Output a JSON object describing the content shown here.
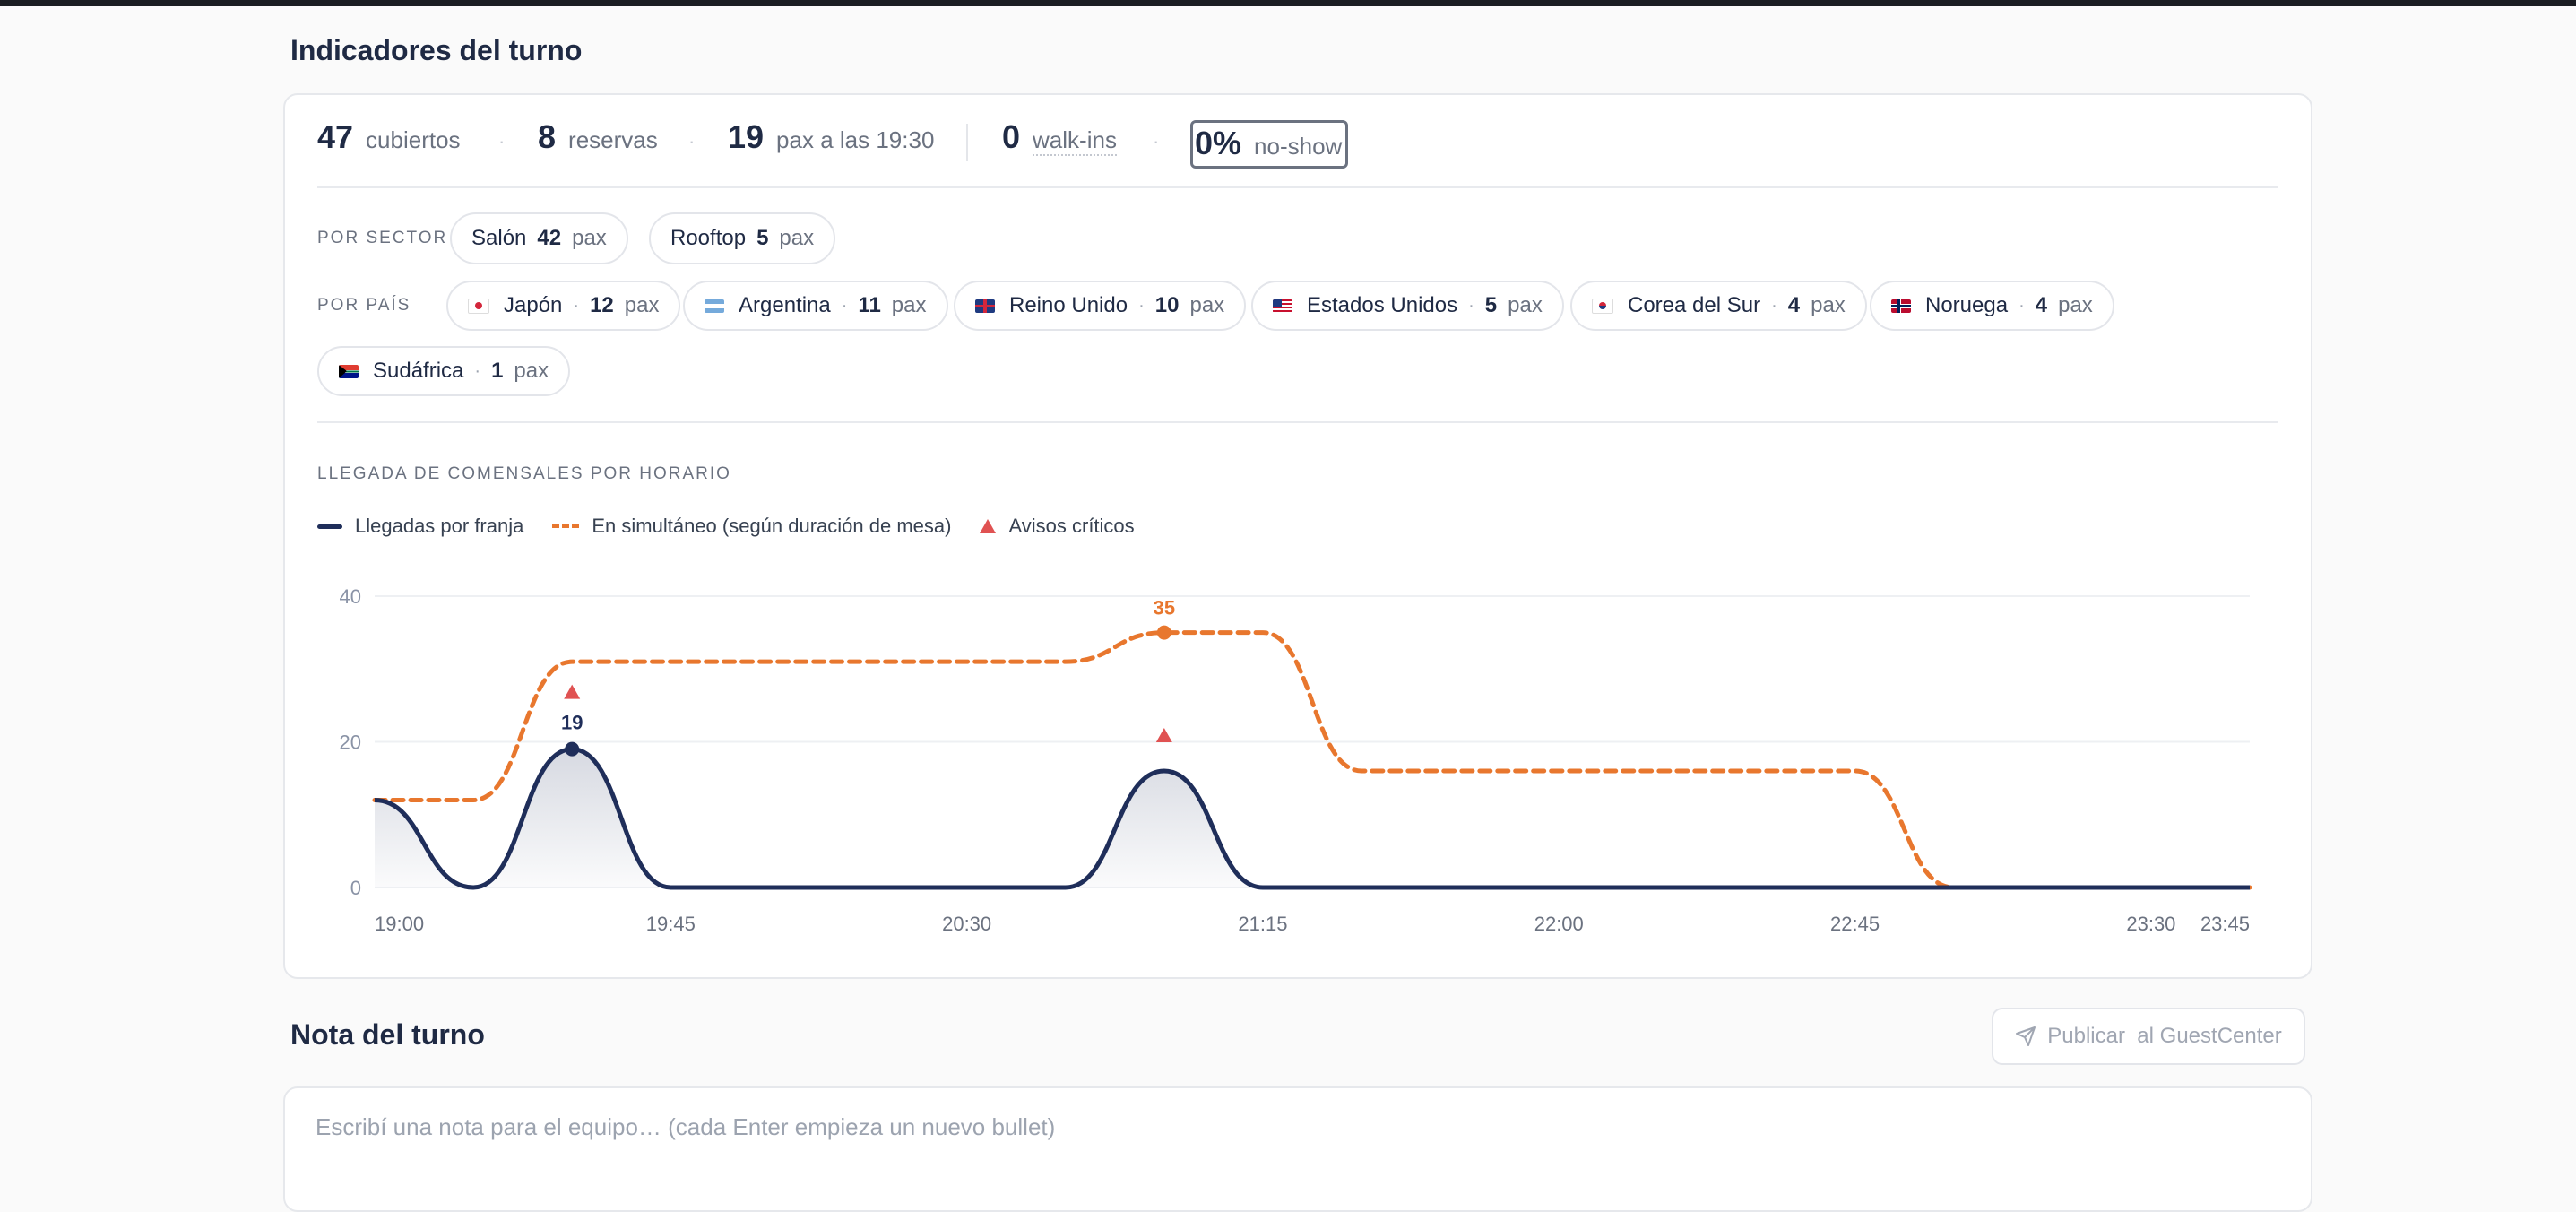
{
  "section_title": "Indicadores del turno",
  "stats": {
    "covers": {
      "value": "47",
      "label": "cubiertos"
    },
    "reservations": {
      "value": "8",
      "label": "reservas"
    },
    "peak": {
      "value": "19",
      "label": "pax a las 19:30"
    },
    "walkins": {
      "value": "0",
      "label": "walk-ins"
    },
    "noshow": {
      "value": "0%",
      "label": "no-show"
    }
  },
  "by_sector": {
    "label": "POR SECTOR",
    "items": [
      {
        "name": "Salón",
        "value": "42",
        "unit": "pax"
      },
      {
        "name": "Rooftop",
        "value": "5",
        "unit": "pax"
      }
    ]
  },
  "by_country": {
    "label": "POR PAÍS",
    "separator": "·",
    "items": [
      {
        "name": "Japón",
        "value": "12",
        "unit": "pax",
        "flag": "jp"
      },
      {
        "name": "Argentina",
        "value": "11",
        "unit": "pax",
        "flag": "ar"
      },
      {
        "name": "Reino Unido",
        "value": "10",
        "unit": "pax",
        "flag": "gb"
      },
      {
        "name": "Estados Unidos",
        "value": "5",
        "unit": "pax",
        "flag": "us"
      },
      {
        "name": "Corea del Sur",
        "value": "4",
        "unit": "pax",
        "flag": "kr"
      },
      {
        "name": "Noruega",
        "value": "4",
        "unit": "pax",
        "flag": "no"
      },
      {
        "name": "Sudáfrica",
        "value": "1",
        "unit": "pax",
        "flag": "za"
      }
    ]
  },
  "chart_title": "LLEGADA DE COMENSALES POR HORARIO",
  "legend": {
    "arrivals": "Llegadas por franja",
    "concurrent": "En simultáneo (según duración de mesa)",
    "alerts": "Avisos críticos"
  },
  "colors": {
    "arrivals": "#1f2e5a",
    "concurrent": "#e8772e",
    "alerts": "#e05252"
  },
  "chart_data": {
    "type": "line",
    "title": "LLEGADA DE COMENSALES POR HORARIO",
    "x": [
      "19:00",
      "19:15",
      "19:30",
      "19:45",
      "20:00",
      "20:15",
      "20:30",
      "20:45",
      "21:00",
      "21:15",
      "21:30",
      "21:45",
      "22:00",
      "22:15",
      "22:30",
      "22:45",
      "23:00",
      "23:15",
      "23:30",
      "23:45"
    ],
    "x_tick_labels": [
      "19:00",
      "19:45",
      "20:30",
      "21:15",
      "22:00",
      "22:45",
      "23:30",
      "23:45"
    ],
    "ylim": [
      0,
      40
    ],
    "y_ticks": [
      0,
      20,
      40
    ],
    "grid": true,
    "series": [
      {
        "name": "Llegadas por franja",
        "style": "solid",
        "values": [
          12,
          0,
          19,
          0,
          0,
          0,
          0,
          0,
          16,
          0,
          0,
          0,
          0,
          0,
          0,
          0,
          0,
          0,
          0,
          0
        ]
      },
      {
        "name": "En simultáneo (según duración de mesa)",
        "style": "dashed",
        "values": [
          12,
          12,
          31,
          31,
          31,
          31,
          31,
          31,
          35,
          35,
          16,
          16,
          16,
          16,
          16,
          16,
          0,
          0,
          0,
          0
        ]
      }
    ],
    "annotations": [
      {
        "x": "19:30",
        "series": "Llegadas por franja",
        "label": "19"
      },
      {
        "x": "21:00",
        "series": "En simultáneo (según duración de mesa)",
        "label": "35"
      }
    ],
    "alerts": [
      {
        "x": "19:30"
      },
      {
        "x": "21:00"
      }
    ]
  },
  "note": {
    "title": "Nota del turno",
    "publish_label": "Publicar  al GuestCenter",
    "placeholder": "Escribí una nota para el equipo… (cada Enter empieza un nuevo bullet)"
  }
}
